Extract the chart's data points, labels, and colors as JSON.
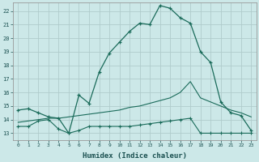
{
  "xlabel": "Humidex (Indice chaleur)",
  "bg_color": "#cce8e8",
  "grid_color": "#b0cccc",
  "line_color": "#1a6b5a",
  "x_ticks": [
    0,
    1,
    2,
    3,
    4,
    5,
    6,
    7,
    8,
    9,
    10,
    11,
    12,
    13,
    14,
    15,
    16,
    17,
    18,
    19,
    20,
    21,
    22,
    23
  ],
  "y_ticks": [
    13,
    14,
    15,
    16,
    17,
    18,
    19,
    20,
    21,
    22
  ],
  "xlim": [
    -0.5,
    23.5
  ],
  "ylim": [
    12.5,
    22.6
  ],
  "line1_x": [
    0,
    1,
    2,
    3,
    4,
    5,
    6,
    7,
    8,
    9,
    10,
    11,
    12,
    13,
    14,
    15,
    16,
    17,
    18,
    19,
    20,
    21,
    22,
    23
  ],
  "line1_y": [
    14.7,
    14.8,
    14.5,
    14.2,
    14.1,
    13.0,
    15.8,
    15.2,
    17.5,
    18.9,
    19.7,
    20.5,
    21.1,
    21.0,
    22.4,
    22.2,
    21.5,
    21.1,
    19.0,
    18.2,
    15.3,
    14.5,
    14.3,
    13.2
  ],
  "line2_x": [
    0,
    1,
    2,
    3,
    4,
    5,
    6,
    7,
    8,
    9,
    10,
    11,
    12,
    13,
    14,
    15,
    16,
    17,
    18,
    19,
    20,
    21,
    22,
    23
  ],
  "line2_y": [
    13.5,
    13.5,
    13.9,
    14.0,
    13.3,
    13.0,
    13.2,
    13.5,
    13.5,
    13.5,
    13.5,
    13.5,
    13.6,
    13.7,
    13.8,
    13.9,
    14.0,
    14.1,
    13.0,
    13.0,
    13.0,
    13.0,
    13.0,
    13.0
  ],
  "line3_x": [
    0,
    1,
    2,
    3,
    4,
    5,
    6,
    7,
    8,
    9,
    10,
    11,
    12,
    13,
    14,
    15,
    16,
    17,
    18,
    19,
    20,
    21,
    22,
    23
  ],
  "line3_y": [
    13.8,
    13.9,
    14.0,
    14.1,
    14.1,
    14.2,
    14.3,
    14.4,
    14.5,
    14.6,
    14.7,
    14.9,
    15.0,
    15.2,
    15.4,
    15.6,
    16.0,
    16.8,
    15.6,
    15.3,
    15.0,
    14.7,
    14.5,
    14.2
  ]
}
